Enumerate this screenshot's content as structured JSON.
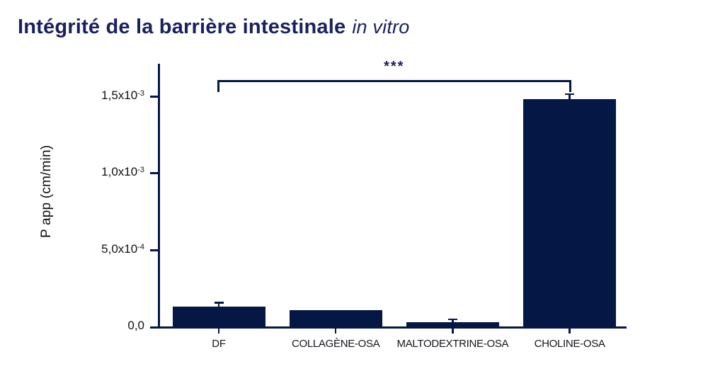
{
  "title": {
    "main": "Intégrité de la barrière intestinale",
    "italic": "in vitro"
  },
  "colors": {
    "bar_navy": "#051745",
    "title_navy": "#1a2160",
    "tick_text": "#111118"
  },
  "chart_data": {
    "type": "bar",
    "title": "Intégrité de la barrière intestinale in vitro",
    "ylabel": "P app (cm/min)",
    "xlabel": "",
    "categories": [
      "DF",
      "COLLAGÈNE-OSA",
      "MALTODEXTRINE-OSA",
      "CHOLINE-OSA"
    ],
    "values": [
      0.00013,
      0.000105,
      2.8e-05,
      0.00148
    ],
    "errors": [
      3e-05,
      0,
      2.3e-05,
      4e-05
    ],
    "bar_color": "#051745",
    "grid": false,
    "legend": false,
    "ylim": [
      0,
      0.0015
    ],
    "yticks": [
      {
        "base": "0,0",
        "exp": "",
        "value": 0
      },
      {
        "base": "5,0x10",
        "exp": "-4",
        "value": 0.0005
      },
      {
        "base": "1,0x10",
        "exp": "-3",
        "value": 0.001
      },
      {
        "base": "1,5x10",
        "exp": "-3",
        "value": 0.0015
      }
    ],
    "significance": {
      "from": 0,
      "to": 3,
      "label": "***"
    }
  }
}
